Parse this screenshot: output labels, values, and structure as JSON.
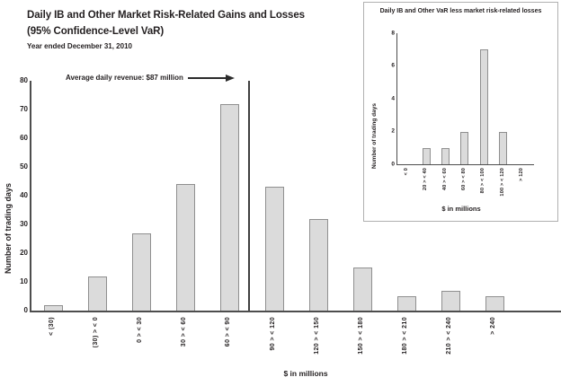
{
  "figure": {
    "background": "#ffffff",
    "colors": {
      "bar_fill": "#dbdbdb",
      "bar_border": "#8f8f8f",
      "axis": "#4d4d4d",
      "text": "#231f20",
      "average_line": "#3f3f3f",
      "inset_border": "#b0b0b0"
    }
  },
  "chart_data": [
    {
      "type": "bar",
      "title": "Daily IB and Other Market Risk-Related Gains and Losses",
      "title2": "(95% Confidence-Level VaR)",
      "subtitle": "Year ended December 31, 2010",
      "annotation": "Average daily revenue: $87 million",
      "annotation_marker": "vertical line between '60 > < 90' and '90 > < 120'",
      "ylabel": "Number of trading days",
      "xlabel": "$ in millions",
      "ylim": [
        0,
        80
      ],
      "yticks": [
        0,
        10,
        20,
        30,
        40,
        50,
        60,
        70,
        80
      ],
      "grid": false,
      "legend": false,
      "categories": [
        "< (30)",
        "(30) > < 0",
        "0 > < 30",
        "30 > < 60",
        "60 > < 90",
        "90 > < 120",
        "120 > < 150",
        "150 > < 180",
        "180 > < 210",
        "210 > < 240",
        "> 240"
      ],
      "values": [
        2,
        12,
        27,
        44,
        72,
        43,
        32,
        15,
        5,
        7,
        5
      ]
    },
    {
      "type": "bar",
      "title": "Daily IB and Other VaR less market risk-related losses",
      "ylabel": "Number of trading days",
      "xlabel": "$ in millions",
      "ylim": [
        0,
        8
      ],
      "yticks": [
        0,
        2,
        4,
        6,
        8
      ],
      "grid": false,
      "legend": false,
      "categories": [
        "< 0",
        "20 > < 40",
        "40 > < 60",
        "60 > < 80",
        "80 > < 100",
        "100 > < 120",
        "> 120"
      ],
      "values": [
        0,
        1,
        1,
        2,
        7,
        2,
        0
      ]
    }
  ]
}
